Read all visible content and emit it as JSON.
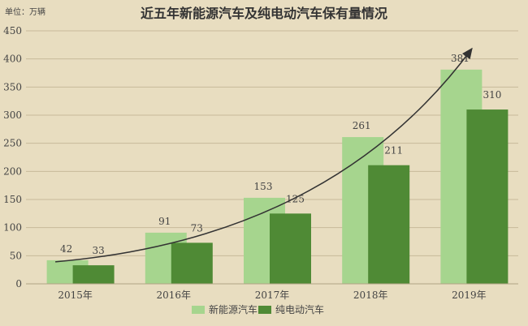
{
  "chart_data": {
    "type": "bar",
    "title": "近五年新能源汽车及纯电动汽车保有量情况",
    "unit_label": "单位：万辆",
    "categories": [
      "2015年",
      "2016年",
      "2017年",
      "2018年",
      "2019年"
    ],
    "series": [
      {
        "name": "新能源汽车",
        "values": [
          42,
          91,
          153,
          261,
          381
        ],
        "color": "#a6d58e"
      },
      {
        "name": "纯电动汽车",
        "values": [
          33,
          73,
          125,
          211,
          310
        ],
        "color": "#4f8a35"
      }
    ],
    "ylim": [
      0,
      450
    ],
    "yticks": [
      0,
      50,
      100,
      150,
      200,
      250,
      300,
      350,
      400,
      450
    ],
    "grid": true,
    "legend_position": "bottom-center",
    "trend_arrow": true
  },
  "colors": {
    "background": "#e8ddc0",
    "gridline": "#c7b99a",
    "axis_text": "#444444",
    "title_text": "#333333",
    "arrow": "#333333"
  }
}
